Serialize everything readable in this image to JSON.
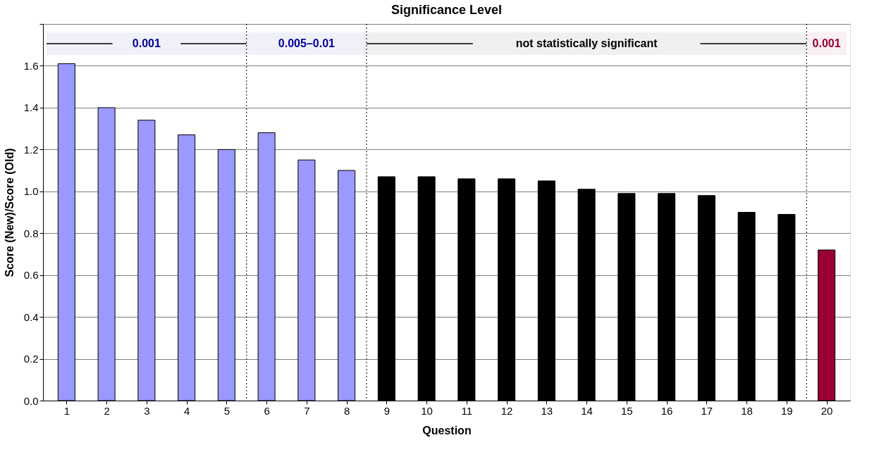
{
  "chart_data": {
    "type": "bar",
    "title": "Significance Level",
    "xlabel": "Question",
    "ylabel": "Score (New)/Score (Old)",
    "x": [
      1,
      2,
      3,
      4,
      5,
      6,
      7,
      8,
      9,
      10,
      11,
      12,
      13,
      14,
      15,
      16,
      17,
      18,
      19,
      20
    ],
    "values": [
      1.61,
      1.4,
      1.34,
      1.27,
      1.2,
      1.28,
      1.15,
      1.1,
      1.07,
      1.07,
      1.06,
      1.06,
      1.05,
      1.01,
      0.99,
      0.99,
      0.98,
      0.9,
      0.89,
      0.72
    ],
    "colors": [
      "#9999ff",
      "#9999ff",
      "#9999ff",
      "#9999ff",
      "#9999ff",
      "#9999ff",
      "#9999ff",
      "#9999ff",
      "#000000",
      "#000000",
      "#000000",
      "#000000",
      "#000000",
      "#000000",
      "#000000",
      "#000000",
      "#000000",
      "#000000",
      "#000000",
      "#990033"
    ],
    "xlim": [
      0.5,
      20.5
    ],
    "xticks": [
      1,
      2,
      3,
      4,
      5,
      6,
      7,
      8,
      9,
      10,
      11,
      12,
      13,
      14,
      15,
      16,
      17,
      18,
      19,
      20
    ],
    "ylim": [
      0,
      1.8
    ],
    "yticks": [
      {
        "value": 0,
        "label": "0.0"
      },
      {
        "value": 0.2,
        "label": "0.2"
      },
      {
        "value": 0.4,
        "label": "0.4"
      },
      {
        "value": 0.6,
        "label": "0.6"
      },
      {
        "value": 0.8,
        "label": "0.8"
      },
      {
        "value": 1,
        "label": "1.0"
      },
      {
        "value": 1.2,
        "label": "1.2"
      },
      {
        "value": 1.4,
        "label": "1.4"
      },
      {
        "value": 1.6,
        "label": "1.6"
      },
      {
        "value": 1.8,
        "label": null
      }
    ],
    "grid": "y",
    "ref_lines": [
      {
        "axis": "x",
        "value": 5.5,
        "line_style": "dotted",
        "color": "#000000"
      },
      {
        "axis": "x",
        "value": 8.5,
        "line_style": "dotted",
        "color": "#000000"
      },
      {
        "axis": "x",
        "value": 19.5,
        "line_style": "dotted",
        "color": "#000000"
      }
    ],
    "bands": [
      {
        "axis": "x",
        "from": 0.5,
        "to": 5.5,
        "label": "0.001",
        "color": "#000099"
      },
      {
        "axis": "x",
        "from": 5.5,
        "to": 8.5,
        "label": "0.005–0.01",
        "color": "#000099"
      },
      {
        "axis": "x",
        "from": 8.5,
        "to": 19.5,
        "label": "not statistically significant",
        "color": "#000000"
      },
      {
        "axis": "x",
        "from": 19.5,
        "to": 20.5,
        "label": "0.001",
        "color": "#990033"
      }
    ]
  }
}
